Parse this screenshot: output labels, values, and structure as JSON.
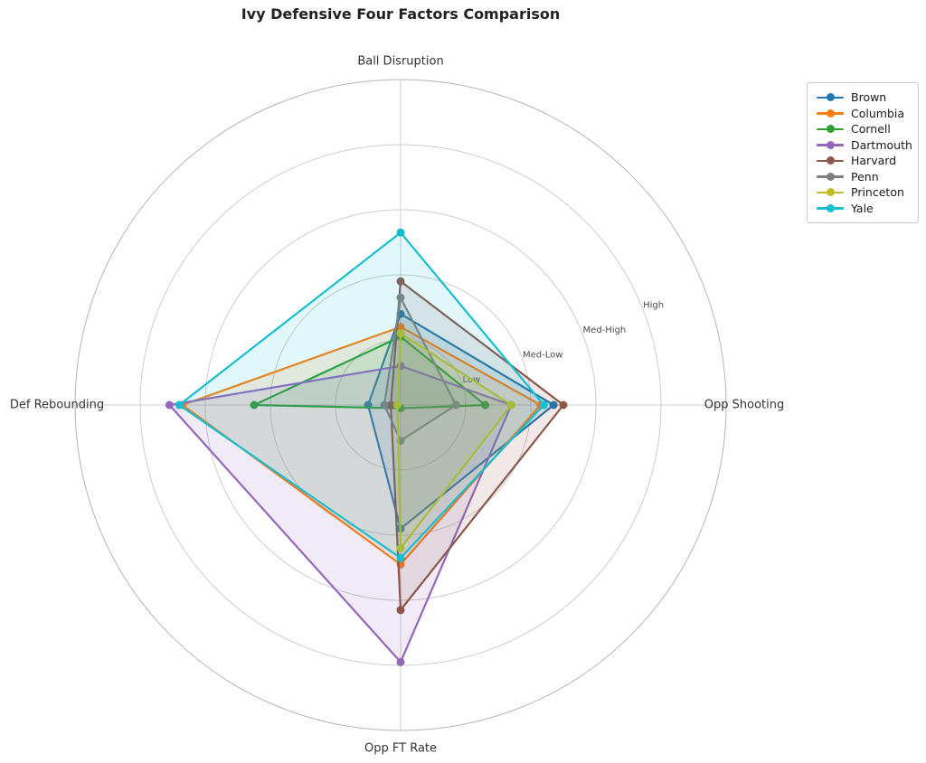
{
  "title": "Ivy Defensive Four Factors Comparison",
  "chart_data": {
    "type": "radar",
    "title": "Ivy Defensive Four Factors Comparison",
    "axes": [
      "Ball Disruption",
      "Opp Shooting",
      "Opp FT Rate",
      "Def Rebounding"
    ],
    "ring_labels": [
      "Low",
      "Med-Low",
      "Med-High",
      "High"
    ],
    "ring_values": [
      1,
      2,
      3,
      4
    ],
    "rmax": 5,
    "grid": true,
    "legend_position": "upper right",
    "fill_opacity": 0.13,
    "series": [
      {
        "name": "Brown",
        "color": "#1f77b4",
        "values": [
          1.4,
          2.35,
          1.9,
          0.5
        ]
      },
      {
        "name": "Columbia",
        "color": "#ff7f0e",
        "values": [
          1.2,
          2.15,
          2.45,
          3.35
        ]
      },
      {
        "name": "Cornell",
        "color": "#2ca02c",
        "values": [
          1.05,
          1.3,
          0.05,
          2.25
        ]
      },
      {
        "name": "Dartmouth",
        "color": "#9467bd",
        "values": [
          0.6,
          1.7,
          3.95,
          3.55
        ]
      },
      {
        "name": "Harvard",
        "color": "#8c564b",
        "values": [
          1.9,
          2.5,
          3.15,
          0.15
        ]
      },
      {
        "name": "Penn",
        "color": "#7f7f7f",
        "values": [
          1.65,
          0.85,
          0.55,
          0.25
        ]
      },
      {
        "name": "Princeton",
        "color": "#bcbd22",
        "values": [
          1.1,
          1.7,
          2.2,
          0.05
        ]
      },
      {
        "name": "Yale",
        "color": "#17becf",
        "values": [
          2.65,
          2.2,
          2.35,
          3.4
        ]
      }
    ]
  }
}
